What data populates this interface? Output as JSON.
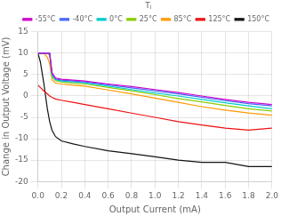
{
  "chart_data": {
    "type": "line",
    "xlabel": "Output Current (mA)",
    "ylabel": "Change in Output Voltage (mV)",
    "legend_title": "Tⱼ",
    "legend": "upper right",
    "grid": true,
    "xlim": [
      0,
      2.0
    ],
    "ylim": [
      -20,
      15
    ],
    "xticks": [
      {
        "value": 0,
        "label": "0.0"
      },
      0.2,
      0.4,
      0.6,
      0.8,
      {
        "value": 1.0,
        "label": "1.0"
      },
      1.2,
      1.4,
      1.6,
      1.8,
      {
        "value": 2.0,
        "label": "2.0"
      }
    ],
    "yticks": [
      -20,
      -15,
      -10,
      -5,
      0,
      5,
      10,
      15
    ],
    "x": [
      0,
      0.02,
      0.05,
      0.08,
      0.1,
      0.12,
      0.15,
      0.2,
      0.3,
      0.4,
      0.6,
      0.8,
      1.0,
      1.2,
      1.4,
      1.6,
      1.8,
      2.0
    ],
    "series": [
      {
        "name": "-55°C",
        "color": "#cc00cc",
        "values": [
          10.0,
          10.0,
          10.0,
          10.0,
          10.0,
          5.5,
          4.2,
          3.9,
          3.7,
          3.5,
          2.8,
          2.2,
          1.5,
          0.8,
          0.0,
          -0.8,
          -1.5,
          -2.0
        ]
      },
      {
        "name": "-40°C",
        "color": "#4466ff",
        "values": [
          10.0,
          10.0,
          10.0,
          10.0,
          10.0,
          5.2,
          4.0,
          3.7,
          3.5,
          3.3,
          2.6,
          1.9,
          1.2,
          0.5,
          -0.3,
          -1.1,
          -1.8,
          -2.3
        ]
      },
      {
        "name": "0°C",
        "color": "#00cccc",
        "values": [
          10.0,
          10.0,
          10.0,
          10.0,
          10.0,
          4.8,
          3.8,
          3.5,
          3.3,
          3.1,
          2.3,
          1.5,
          0.7,
          0.0,
          -0.8,
          -1.6,
          -2.3,
          -3.0
        ]
      },
      {
        "name": "25°C",
        "color": "#88cc00",
        "values": [
          10.0,
          10.0,
          10.0,
          10.0,
          9.5,
          4.5,
          3.6,
          3.3,
          3.0,
          2.8,
          2.0,
          1.2,
          0.3,
          -0.6,
          -1.4,
          -2.2,
          -3.0,
          -3.5
        ]
      },
      {
        "name": "85°C",
        "color": "#ff9900",
        "values": [
          10.0,
          10.0,
          10.0,
          9.0,
          7.5,
          3.8,
          3.0,
          2.8,
          2.5,
          2.3,
          1.4,
          0.5,
          -0.5,
          -1.5,
          -2.5,
          -3.3,
          -4.0,
          -4.5
        ]
      },
      {
        "name": "125°C",
        "color": "#ee1111",
        "values": [
          2.5,
          2.0,
          1.2,
          0.5,
          0.0,
          -0.3,
          -0.7,
          -1.0,
          -1.5,
          -2.0,
          -3.0,
          -4.0,
          -5.0,
          -6.0,
          -6.8,
          -7.5,
          -8.0,
          -7.5
        ]
      },
      {
        "name": "150°C",
        "color": "#111111",
        "values": [
          10.0,
          8.0,
          3.0,
          -3.0,
          -6.0,
          -8.0,
          -9.5,
          -10.5,
          -11.2,
          -11.8,
          -12.8,
          -13.5,
          -14.2,
          -15.0,
          -15.5,
          -15.5,
          -16.5,
          -16.5
        ]
      }
    ]
  }
}
